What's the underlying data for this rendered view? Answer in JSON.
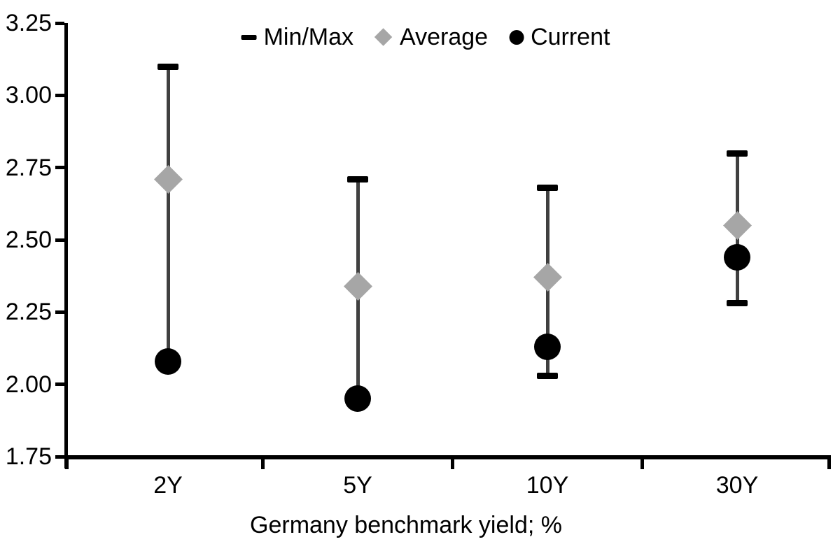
{
  "chart_data": {
    "type": "scatter",
    "subtype": "min-max-range-dot-plot",
    "title": "",
    "xlabel": "Germany benchmark yield; %",
    "ylabel": "",
    "categories": [
      "2Y",
      "5Y",
      "10Y",
      "30Y"
    ],
    "series": [
      {
        "name": "Min/Max",
        "role": "range",
        "marker": "dash",
        "min": [
          2.08,
          1.95,
          2.03,
          2.28
        ],
        "max": [
          3.1,
          2.71,
          2.68,
          2.8
        ]
      },
      {
        "name": "Average",
        "role": "point",
        "marker": "diamond",
        "values": [
          2.71,
          2.34,
          2.37,
          2.55
        ]
      },
      {
        "name": "Current",
        "role": "point",
        "marker": "circle",
        "values": [
          2.08,
          1.95,
          2.13,
          2.44
        ]
      }
    ],
    "ylim": [
      1.75,
      3.25
    ],
    "ytick_step": 0.25,
    "ytick_labels": [
      "3.25",
      "3.00",
      "2.75",
      "2.50",
      "2.25",
      "2.00",
      "1.75"
    ],
    "legend": [
      {
        "label": "Min/Max",
        "marker": "dash",
        "color": "#000000"
      },
      {
        "label": "Average",
        "marker": "diamond",
        "color": "#a6a6a6"
      },
      {
        "label": "Current",
        "marker": "circle",
        "color": "#000000"
      }
    ],
    "legend_position": "top-center",
    "grid": false,
    "colors": {
      "background": "#ffffff",
      "axis": "#000000",
      "text": "#000000",
      "whisker_line": "#404040",
      "minmax_cap": "#000000",
      "average": "#a6a6a6",
      "current": "#000000"
    }
  }
}
